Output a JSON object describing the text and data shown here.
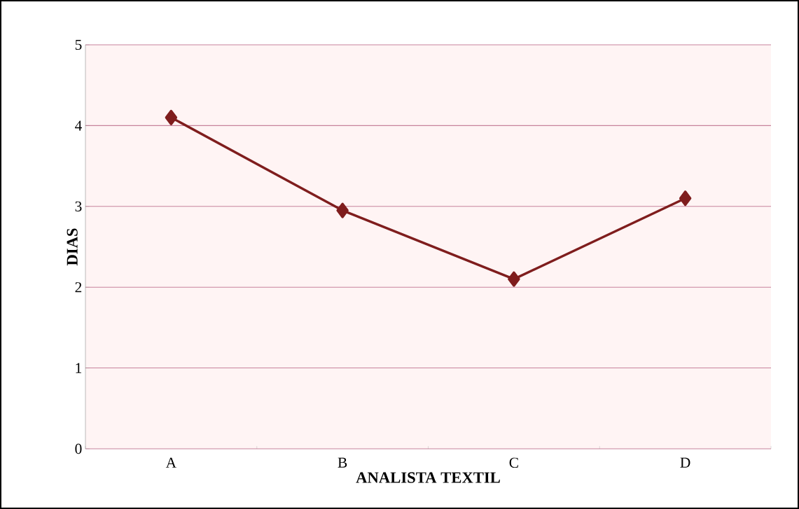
{
  "chart_data": {
    "type": "line",
    "xlabel": "ANALISTA TEXTIL",
    "ylabel": "DIAS",
    "categories": [
      "A",
      "B",
      "C",
      "D"
    ],
    "series": [
      {
        "color": "#7f1d1d",
        "values": [
          4.1,
          2.95,
          2.1,
          3.1
        ]
      }
    ],
    "ylim": [
      0,
      5
    ],
    "yticks": [
      0,
      1,
      2,
      3,
      4,
      5
    ],
    "grid": "y",
    "marker": "diamond",
    "line_style": "solid"
  }
}
